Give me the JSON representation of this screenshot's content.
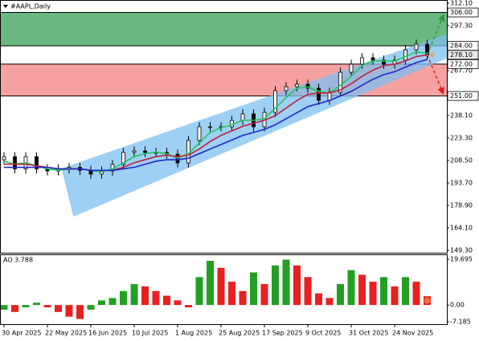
{
  "chart_data": [
    {
      "type": "candlestick",
      "title": "#AAPL,Daily",
      "categories": [
        "30 Apr 2025",
        null,
        null,
        null,
        "22 May 2025",
        null,
        null,
        null,
        "16 Jun 2025",
        null,
        null,
        null,
        "10 Jul 2025",
        null,
        null,
        null,
        "1 Aug 2025",
        null,
        null,
        null,
        "25 Aug 2025",
        null,
        null,
        null,
        "17 Sep 2025",
        null,
        null,
        null,
        "9 Oct 2025",
        null,
        null,
        null,
        "31 Oct 2025",
        null,
        null,
        null,
        "24 Nov 2025",
        null,
        null,
        null
      ],
      "open": [
        209,
        211,
        203,
        211,
        203,
        201.6,
        203,
        204,
        202,
        199.5,
        201.6,
        205.9,
        213.8,
        214.8,
        213.8,
        213.8,
        212.7,
        206.9,
        221.7,
        230.7,
        230.7,
        230.7,
        234.9,
        239.2,
        230.7,
        240.2,
        254.5,
        257.1,
        258.7,
        256.1,
        248.1,
        253.4,
        266.6,
        271.9,
        276.2,
        274.6,
        271.9,
        274.6,
        281.4,
        285.1
      ],
      "high": [
        214,
        214,
        214,
        214,
        206,
        206,
        207,
        207,
        205,
        204.6,
        208.9,
        216.8,
        217.8,
        217.8,
        216.8,
        216.8,
        215.7,
        224.7,
        233.7,
        233.7,
        233.7,
        237.9,
        242.2,
        242.2,
        243.2,
        257.5,
        260.1,
        261.7,
        261.7,
        259.1,
        256.4,
        269.6,
        274.9,
        279.2,
        279.2,
        277.6,
        277.6,
        284.4,
        288.1,
        288.1
      ],
      "low": [
        206,
        200,
        200,
        200,
        198.6,
        198.6,
        200,
        199,
        196.5,
        196.5,
        198.6,
        202.9,
        210.8,
        210.8,
        210.8,
        209.7,
        203.9,
        203.9,
        218.7,
        227.7,
        227.7,
        227.7,
        231.9,
        227.7,
        227.7,
        237.2,
        251.5,
        254.1,
        253.1,
        245.1,
        245.1,
        250.4,
        263.6,
        268.9,
        271.6,
        268.9,
        268.9,
        271.6,
        278.4,
        275.1
      ],
      "close": [
        211,
        203,
        211,
        203,
        201.6,
        203,
        204,
        202,
        199.5,
        201.6,
        205.9,
        213.8,
        214.8,
        213.8,
        213.8,
        212.7,
        206.9,
        221.7,
        230.7,
        230.7,
        230.7,
        234.9,
        239.2,
        230.7,
        240.2,
        254.5,
        257.1,
        258.7,
        256.1,
        248.1,
        253.4,
        266.6,
        271.9,
        276.2,
        274.6,
        271.9,
        274.6,
        281.4,
        285.1,
        278.1
      ],
      "candle_color": "#000000",
      "lines": [
        {
          "color": "#22c55e",
          "values": [
            208,
            206,
            207,
            205,
            203,
            202,
            203,
            203,
            202,
            201,
            203,
            207,
            211,
            213,
            214,
            213,
            210,
            213,
            220,
            227,
            230,
            232,
            235,
            235,
            236,
            243,
            250,
            256,
            257,
            254,
            253,
            258,
            264,
            271,
            274,
            274,
            274,
            277,
            280,
            279
          ]
        },
        {
          "color": "#c0203a",
          "values": [
            206,
            206,
            206,
            205,
            204,
            203,
            203,
            203,
            202,
            202,
            202,
            204,
            207,
            209,
            211,
            212,
            211,
            212,
            216,
            221,
            225,
            228,
            231,
            233,
            235,
            238,
            243,
            248,
            252,
            253,
            253,
            255,
            259,
            264,
            268,
            271,
            272,
            274,
            277,
            278
          ]
        },
        {
          "color": "#1d28c8",
          "values": [
            204,
            204,
            204,
            204,
            204,
            203,
            203,
            203,
            202,
            202,
            202,
            203,
            204,
            206,
            208,
            209,
            209,
            210,
            213,
            216,
            219,
            222,
            225,
            227,
            229,
            232,
            236,
            240,
            244,
            246,
            248,
            251,
            254,
            258,
            262,
            265,
            267,
            270,
            273,
            275
          ]
        }
      ],
      "channel": {
        "color": "#7dbff0",
        "upper": {
          "x": [
            5.3,
            40.8
          ],
          "y": [
            203.2,
            291.7
          ]
        },
        "lower": {
          "x": [
            6.4,
            40.8
          ],
          "y": [
            171.5,
            275.7
          ]
        }
      },
      "zones": [
        {
          "top": {
            "value": 306,
            "label": "306.00"
          },
          "bottom": {
            "value": 284,
            "label": "284.00"
          },
          "color": "#6cb882",
          "arrow": "#2e9a3a"
        },
        {
          "top": {
            "value": 272,
            "label": "272.00"
          },
          "bottom": {
            "value": 251,
            "label": "251.00"
          },
          "color": "#f6a1a1",
          "arrow": "#e02020"
        }
      ],
      "last_price": {
        "value": 278.1,
        "label": "278.10"
      },
      "ylim": [
        149.3,
        312.1
      ],
      "yticks": [
        {
          "value": 312.1,
          "label": "312.10"
        },
        {
          "value": 297.3,
          "label": "297.30"
        },
        {
          "value": 267.7,
          "label": "267.70"
        },
        {
          "value": 238.1,
          "label": "238.10"
        },
        {
          "value": 223.3,
          "label": "223.30"
        },
        {
          "value": 208.5,
          "label": "208.50"
        },
        {
          "value": 193.7,
          "label": "193.70"
        },
        {
          "value": 178.9,
          "label": "178.90"
        },
        {
          "value": 164.1,
          "label": "164.10"
        },
        {
          "value": 149.3,
          "label": "149.30"
        }
      ]
    },
    {
      "type": "bar",
      "title": "AO 3.788",
      "values": [
        -2,
        -3,
        -1,
        1,
        -1,
        -3,
        -5,
        -6,
        -2,
        2,
        3,
        6,
        9,
        8,
        6,
        4,
        2,
        -1,
        12,
        19,
        16,
        10,
        6,
        14,
        9,
        17,
        19.5,
        17,
        12,
        5,
        3,
        9,
        15,
        13,
        10,
        12,
        8,
        12,
        10,
        3.788
      ],
      "up_color": "#22a022",
      "down_color": "#e82020",
      "ylim": [
        -7.185,
        19.695
      ],
      "yticks": [
        19.695,
        {
          "value": 0,
          "label": "0.00"
        },
        -7.185
      ]
    }
  ]
}
